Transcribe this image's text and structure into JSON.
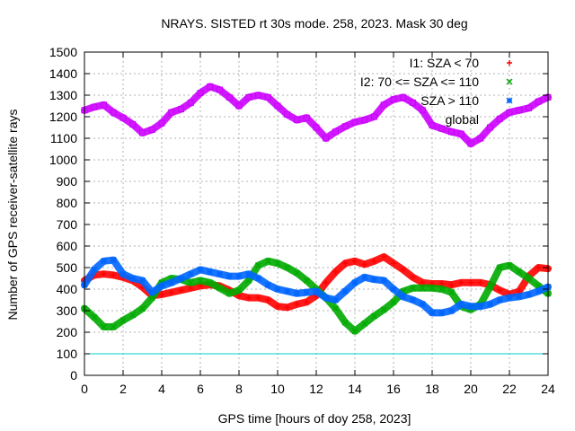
{
  "chart_data": {
    "type": "scatter",
    "title": "NRAYS. SISTED rt 30s mode. 258, 2023. Mask 30 deg",
    "xlabel": "GPS time [hours of doy 258, 2023]",
    "ylabel": "Number of GPS receiver-satellite rays",
    "xlim": [
      0,
      24
    ],
    "ylim": [
      0,
      1500
    ],
    "xticks": [
      0,
      2,
      4,
      6,
      8,
      10,
      12,
      14,
      16,
      18,
      20,
      22,
      24
    ],
    "xtick_labels": [
      "0",
      "2",
      "4",
      "6",
      "8",
      "10",
      "12",
      "14",
      "16",
      "18",
      "20",
      "22",
      "24"
    ],
    "yticks": [
      0,
      100,
      200,
      300,
      400,
      500,
      600,
      700,
      800,
      900,
      1000,
      1100,
      1200,
      1300,
      1400,
      1500
    ],
    "ytick_labels": [
      "0",
      "100",
      "200",
      "300",
      "400",
      "500",
      "600",
      "700",
      "800",
      "900",
      "1000",
      "1100",
      "1200",
      "1300",
      "1400",
      "1500"
    ],
    "grid": true,
    "legend_position": "top-right",
    "threshold_line": {
      "y": 100,
      "color": "#00cccc"
    },
    "series": [
      {
        "name": "I1: SZA < 70",
        "marker": "+",
        "color": "#ff0000",
        "x": [
          0,
          0.5,
          1,
          1.5,
          2,
          2.5,
          3,
          3.5,
          4,
          4.5,
          5,
          5.5,
          6,
          6.5,
          7,
          7.5,
          8,
          8.5,
          9,
          9.5,
          10,
          10.5,
          11,
          11.5,
          12,
          12.5,
          13,
          13.5,
          14,
          14.5,
          15,
          15.5,
          16,
          16.5,
          17,
          17.5,
          18,
          18.5,
          19,
          19.5,
          20,
          20.5,
          21,
          21.5,
          22,
          22.5,
          23,
          23.5,
          24
        ],
        "y": [
          440,
          465,
          470,
          465,
          455,
          440,
          410,
          370,
          375,
          385,
          395,
          405,
          415,
          420,
          415,
          395,
          370,
          360,
          360,
          350,
          320,
          315,
          330,
          340,
          370,
          430,
          480,
          520,
          530,
          515,
          530,
          550,
          520,
          490,
          455,
          430,
          425,
          425,
          420,
          430,
          430,
          430,
          420,
          395,
          375,
          390,
          460,
          500,
          495
        ]
      },
      {
        "name": "I2: 70 <= SZA <= 110",
        "marker": "x",
        "color": "#00aa00",
        "x": [
          0,
          0.5,
          1,
          1.5,
          2,
          2.5,
          3,
          3.5,
          4,
          4.5,
          5,
          5.5,
          6,
          6.5,
          7,
          7.5,
          8,
          8.5,
          9,
          9.5,
          10,
          10.5,
          11,
          11.5,
          12,
          12.5,
          13,
          13.5,
          14,
          14.5,
          15,
          15.5,
          16,
          16.5,
          17,
          17.5,
          18,
          18.5,
          19,
          19.5,
          20,
          20.5,
          21,
          21.5,
          22,
          22.5,
          23,
          23.5,
          24
        ],
        "y": [
          310,
          270,
          225,
          225,
          255,
          280,
          310,
          360,
          430,
          450,
          445,
          430,
          440,
          430,
          405,
          380,
          395,
          440,
          510,
          530,
          520,
          500,
          475,
          440,
          400,
          360,
          310,
          245,
          205,
          240,
          275,
          305,
          340,
          390,
          405,
          405,
          405,
          400,
          385,
          320,
          305,
          330,
          410,
          500,
          510,
          480,
          450,
          415,
          380
        ]
      },
      {
        "name": "SZA > 110",
        "marker": "*",
        "color": "#0066ff",
        "x": [
          0,
          0.5,
          1,
          1.5,
          2,
          2.5,
          3,
          3.5,
          4,
          4.5,
          5,
          5.5,
          6,
          6.5,
          7,
          7.5,
          8,
          8.5,
          9,
          9.5,
          10,
          10.5,
          11,
          11.5,
          12,
          12.5,
          13,
          13.5,
          14,
          14.5,
          15,
          15.5,
          16,
          16.5,
          17,
          17.5,
          18,
          18.5,
          19,
          19.5,
          20,
          20.5,
          21,
          21.5,
          22,
          22.5,
          23,
          23.5,
          24
        ],
        "y": [
          420,
          490,
          530,
          535,
          470,
          450,
          440,
          385,
          415,
          430,
          450,
          470,
          490,
          480,
          470,
          460,
          460,
          470,
          450,
          420,
          400,
          390,
          380,
          385,
          390,
          360,
          350,
          390,
          430,
          455,
          445,
          440,
          400,
          365,
          350,
          330,
          290,
          290,
          300,
          330,
          320,
          320,
          330,
          350,
          360,
          365,
          375,
          390,
          410
        ]
      },
      {
        "name": "global",
        "marker": "square",
        "color": "#cc00ff",
        "x": [
          0,
          0.5,
          1,
          1.5,
          2,
          2.5,
          3,
          3.5,
          4,
          4.5,
          5,
          5.5,
          6,
          6.5,
          7,
          7.5,
          8,
          8.5,
          9,
          9.5,
          10,
          10.5,
          11,
          11.5,
          12,
          12.5,
          13,
          13.5,
          14,
          14.5,
          15,
          15.5,
          16,
          16.5,
          17,
          17.5,
          18,
          18.5,
          19,
          19.5,
          20,
          20.5,
          21,
          21.5,
          22,
          22.5,
          23,
          23.5,
          24
        ],
        "y": [
          1230,
          1245,
          1255,
          1220,
          1195,
          1165,
          1125,
          1140,
          1170,
          1220,
          1235,
          1265,
          1310,
          1340,
          1325,
          1290,
          1250,
          1290,
          1300,
          1290,
          1250,
          1210,
          1185,
          1195,
          1150,
          1100,
          1130,
          1155,
          1175,
          1185,
          1200,
          1255,
          1280,
          1290,
          1265,
          1230,
          1160,
          1145,
          1130,
          1120,
          1075,
          1100,
          1150,
          1190,
          1220,
          1230,
          1240,
          1270,
          1290
        ]
      }
    ]
  }
}
